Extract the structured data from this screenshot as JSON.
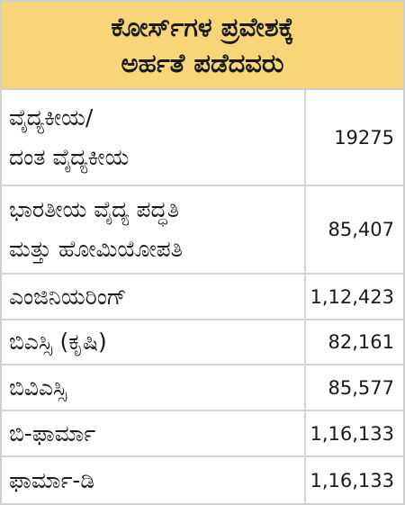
{
  "header": {
    "title": [
      "ಕೋರ್ಸ್‌ಗಳ ಪ್ರವೇಶಕ್ಕೆ",
      "ಅರ್ಹತೆ ಪಡೆದವರು"
    ]
  },
  "table": {
    "rows": [
      {
        "label": [
          "ವೈದ್ಯಕೀಯ/",
          "ದಂತ ವೈದ್ಯಕೀಯ"
        ],
        "value": "19275"
      },
      {
        "label": [
          "ಭಾರತೀಯ ವೈದ್ಯ ಪದ್ಧತಿ",
          "ಮತ್ತು ಹೋಮಿಯೋಪತಿ"
        ],
        "value": "85,407"
      },
      {
        "label": [
          "ಎಂಜಿನಿಯರಿಂಗ್"
        ],
        "value": "1,12,423"
      },
      {
        "label": [
          "ಬಿಎಸ್ಸಿ (ಕೃಷಿ)"
        ],
        "value": "82,161"
      },
      {
        "label": [
          "ಬಿವಿಎಸ್ಸಿ"
        ],
        "value": "85,577"
      },
      {
        "label": [
          "ಬಿ-ಫಾರ್ಮಾ"
        ],
        "value": "1,16,133"
      },
      {
        "label": [
          "ಫಾರ್ಮಾ-ಡಿ"
        ],
        "value": "1,16,133"
      }
    ]
  }
}
